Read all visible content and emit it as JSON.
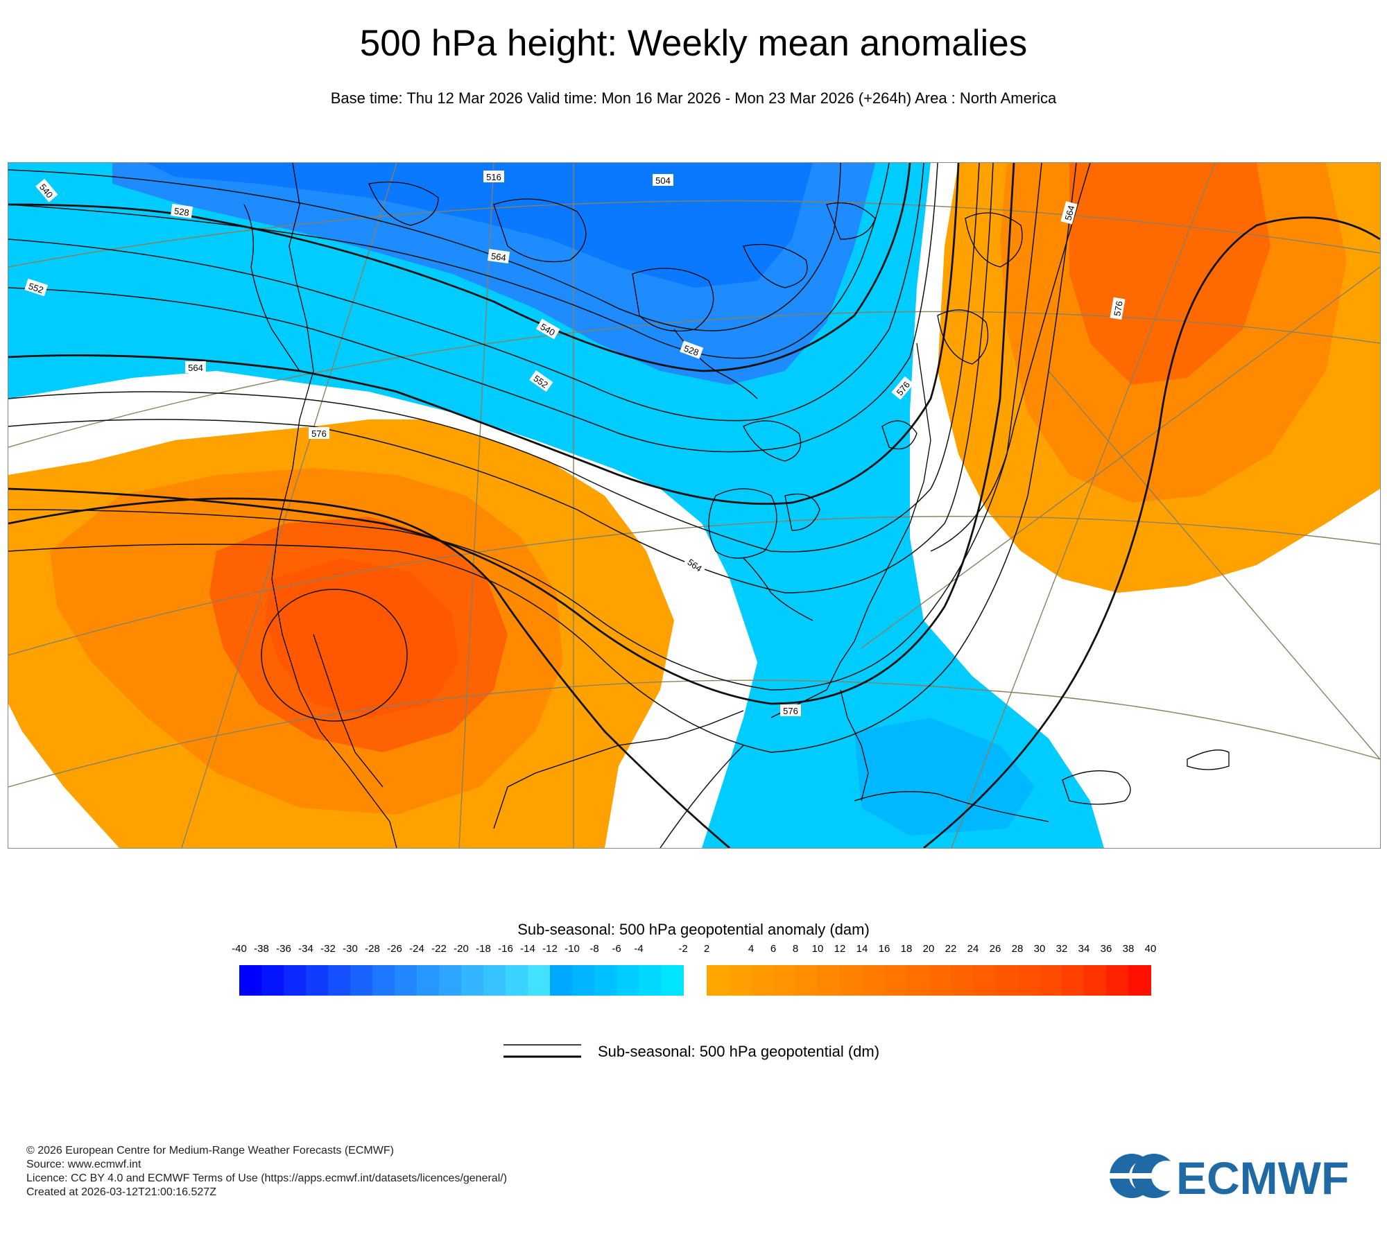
{
  "title": "500 hPa height: Weekly mean anomalies",
  "subtitle": "Base time: Thu 12 Mar 2026 Valid time: Mon 16 Mar 2026 - Mon 23 Mar 2026 (+264h) Area : North America",
  "map": {
    "area": "North America",
    "contour_labels": [
      "504",
      "528",
      "540",
      "552",
      "564",
      "576",
      "528",
      "540",
      "552",
      "564",
      "576",
      "564",
      "576",
      "564",
      "576",
      "516"
    ]
  },
  "colorbar": {
    "title": "Sub-seasonal: 500 hPa geopotential anomaly (dam)",
    "ticks": [
      "-40",
      "-38",
      "-36",
      "-34",
      "-32",
      "-30",
      "-28",
      "-26",
      "-24",
      "-22",
      "-20",
      "-18",
      "-16",
      "-14",
      "-12",
      "-10",
      "-8",
      "-6",
      "-4",
      "-2",
      "2",
      "4",
      "6",
      "8",
      "10",
      "12",
      "14",
      "16",
      "18",
      "20",
      "22",
      "24",
      "26",
      "28",
      "30",
      "32",
      "34",
      "36",
      "38",
      "40"
    ],
    "negative_colors": [
      "#0000ff",
      "#0514ff",
      "#0a28ff",
      "#0f3cff",
      "#1450ff",
      "#1964ff",
      "#1e78ff",
      "#2387ff",
      "#2896ff",
      "#2da5ff",
      "#32b4ff",
      "#37c3ff",
      "#3cd2ff",
      "#41e1ff",
      "#00a8ff",
      "#00b4ff",
      "#00c0ff",
      "#00ccff",
      "#00d8ff",
      "#00e4ff"
    ],
    "positive_colors": [
      "#ffa500",
      "#ff9f00",
      "#ff9900",
      "#ff9300",
      "#ff8d00",
      "#ff8700",
      "#ff8100",
      "#ff7b00",
      "#ff7500",
      "#ff6f00",
      "#ff6900",
      "#ff6300",
      "#ff5d00",
      "#ff5700",
      "#ff5100",
      "#ff4b00",
      "#ff4000",
      "#ff3300",
      "#ff2200",
      "#ff1000"
    ]
  },
  "legend": {
    "label": "Sub-seasonal: 500 hPa geopotential (dm)"
  },
  "footer": {
    "line1": "© 2026 European Centre for Medium-Range Weather Forecasts (ECMWF)",
    "line2": "Source: www.ecmwf.int",
    "line3": "Licence: CC BY 4.0 and ECMWF Terms of Use (https://apps.ecmwf.int/datasets/licences/general/)",
    "line4": "Created at 2026-03-12T21:00:16.527Z"
  },
  "logo": {
    "text": "ECMWF",
    "color": "#1f6aa5"
  }
}
